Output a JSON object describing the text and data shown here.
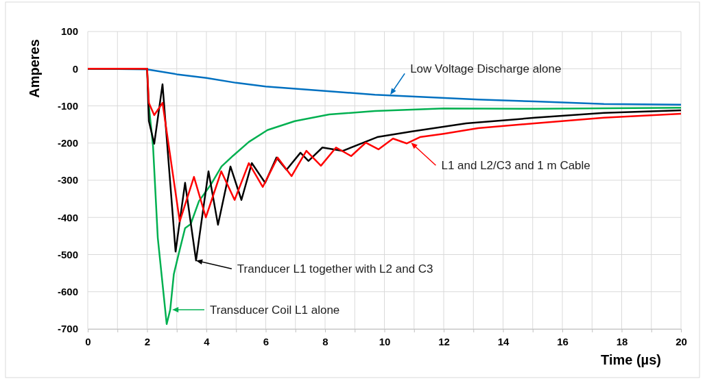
{
  "chart_data": {
    "type": "line",
    "xlabel": "Time (µs)",
    "ylabel": "Amperes",
    "xlim": [
      0,
      20
    ],
    "ylim": [
      -700,
      100
    ],
    "xticks": [
      0,
      {
        "value": 1,
        "label": null
      },
      2,
      {
        "value": 3,
        "label": null
      },
      4,
      {
        "value": 5,
        "label": null
      },
      6,
      {
        "value": 7,
        "label": null
      },
      8,
      {
        "value": 9,
        "label": null
      },
      10,
      {
        "value": 11,
        "label": null
      },
      12,
      {
        "value": 13,
        "label": null
      },
      14,
      {
        "value": 15,
        "label": null
      },
      16,
      {
        "value": 17,
        "label": null
      },
      18,
      {
        "value": 19,
        "label": null
      },
      20
    ],
    "yticks": [
      -700,
      -600,
      -500,
      -400,
      -300,
      -200,
      -100,
      0,
      100
    ],
    "grid": true,
    "marker": "none",
    "line_style": "solid",
    "series": [
      {
        "color": "#0070c0",
        "x": [
          0,
          2,
          3,
          4,
          5,
          6,
          8,
          9.68,
          13.16,
          15.07,
          17.4,
          20
        ],
        "values": [
          0,
          -2,
          -15,
          -25,
          -38,
          -48,
          -60,
          -70,
          -83,
          -88,
          -95,
          -97
        ]
      },
      {
        "color": "#00b050",
        "x": [
          0,
          2,
          2.06,
          2.2,
          2.36,
          2.66,
          2.78,
          2.9,
          3.05,
          3.28,
          3.47,
          3.75,
          4.14,
          4.51,
          4.9,
          5.43,
          6.06,
          6.98,
          8.14,
          9.68,
          12,
          15.07,
          20
        ],
        "values": [
          0,
          0,
          -100,
          -208,
          -455,
          -687,
          -648,
          -553,
          -503,
          -429,
          -418,
          -356,
          -313,
          -263,
          -234,
          -197,
          -165,
          -141,
          -123,
          -114,
          -107,
          -108,
          -105
        ]
      },
      {
        "color": "#000000",
        "x": [
          0,
          2,
          2.06,
          2.24,
          2.52,
          2.96,
          3.28,
          3.65,
          4.07,
          4.39,
          4.81,
          5.18,
          5.53,
          5.98,
          6.36,
          6.7,
          7.17,
          7.44,
          7.91,
          8.6,
          9.76,
          10.9,
          12.76,
          15.07,
          17.4,
          20
        ],
        "values": [
          0,
          0,
          -141,
          -202,
          -42,
          -492,
          -307,
          -516,
          -276,
          -420,
          -263,
          -353,
          -254,
          -307,
          -239,
          -272,
          -226,
          -248,
          -212,
          -221,
          -184,
          -169,
          -147,
          -132,
          -119,
          -112
        ]
      },
      {
        "color": "#ff0000",
        "x": [
          0,
          2,
          2.06,
          2.24,
          2.52,
          3.1,
          3.58,
          3.98,
          4.5,
          4.95,
          5.43,
          5.9,
          6.4,
          6.87,
          7.37,
          7.86,
          8.37,
          8.88,
          9.37,
          9.8,
          10.29,
          10.75,
          11.2,
          12,
          13.16,
          15.07,
          17.4,
          20
        ],
        "values": [
          0,
          0,
          -92,
          -125,
          -92,
          -411,
          -291,
          -400,
          -276,
          -353,
          -254,
          -318,
          -239,
          -289,
          -221,
          -261,
          -212,
          -235,
          -199,
          -217,
          -188,
          -201,
          -184,
          -175,
          -160,
          -147,
          -132,
          -121
        ]
      }
    ],
    "annotations": [
      {
        "text": "Low Voltage Discharge alone",
        "x": 10.2,
        "y": -70
      },
      {
        "text": "L1 and L2/C3 and 1 m Cable",
        "x": 10.9,
        "y": -199
      },
      {
        "text": "Tranducer L1 together with L2 and C3",
        "x": 3.65,
        "y": -516
      },
      "Transducer Coil L1 alone"
    ]
  }
}
